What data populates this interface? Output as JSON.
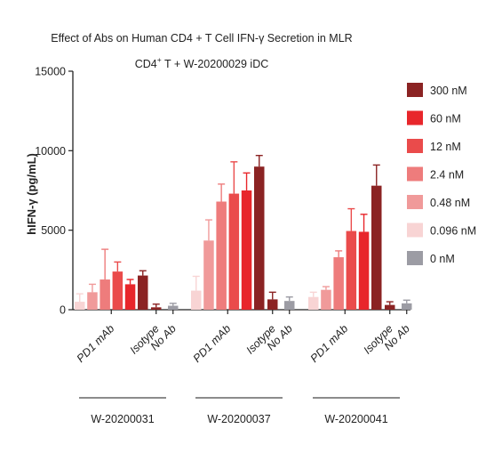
{
  "chart_data": {
    "type": "bar",
    "title": "Effect of Abs on Human CD4 + T Cell IFN-γ Secretion in MLR",
    "subtitle_prefix": "CD4",
    "subtitle_sup": "+",
    "subtitle_suffix": " T  +  W-20200029 iDC",
    "ylabel": "hIFN-γ (pg/mL)",
    "ylim": [
      0,
      15000
    ],
    "yticks": [
      "0",
      "5000",
      "10000",
      "15000"
    ],
    "legend_position": "right",
    "series": [
      {
        "name": "300 nM",
        "color": "#8b2323"
      },
      {
        "name": "60 nM",
        "color": "#e8262b"
      },
      {
        "name": "12 nM",
        "color": "#ea4b4b"
      },
      {
        "name": "2.4 nM",
        "color": "#ee7c7c"
      },
      {
        "name": "0.48 nM",
        "color": "#f09a9a"
      },
      {
        "name": "0.096 nM",
        "color": "#f8d4d4"
      },
      {
        "name": "0 nM",
        "color": "#9c9ca4"
      }
    ],
    "groups": [
      {
        "label": "W-20200031",
        "subgroups": [
          {
            "label": "PD1 mAb",
            "bars": [
              {
                "series": "0.096 nM",
                "value": 500,
                "error": 500
              },
              {
                "series": "0.48 nM",
                "value": 1100,
                "error": 500
              },
              {
                "series": "2.4 nM",
                "value": 1900,
                "error": 1900
              },
              {
                "series": "12 nM",
                "value": 2400,
                "error": 600
              },
              {
                "series": "60 nM",
                "value": 1600,
                "error": 300
              },
              {
                "series": "300 nM",
                "value": 2150,
                "error": 300
              }
            ]
          },
          {
            "label": "Isotype",
            "bars": [
              {
                "series": "300 nM",
                "value": 150,
                "error": 200
              }
            ]
          },
          {
            "label": "No Ab",
            "bars": [
              {
                "series": "0 nM",
                "value": 250,
                "error": 150
              }
            ]
          }
        ]
      },
      {
        "label": "W-20200037",
        "subgroups": [
          {
            "label": "PD1 mAb",
            "bars": [
              {
                "series": "0.096 nM",
                "value": 1200,
                "error": 900
              },
              {
                "series": "0.48 nM",
                "value": 4350,
                "error": 1300
              },
              {
                "series": "2.4 nM",
                "value": 6800,
                "error": 1100
              },
              {
                "series": "12 nM",
                "value": 7300,
                "error": 2000
              },
              {
                "series": "60 nM",
                "value": 7500,
                "error": 1100
              },
              {
                "series": "300 nM",
                "value": 9000,
                "error": 700
              }
            ]
          },
          {
            "label": "Isotype",
            "bars": [
              {
                "series": "300 nM",
                "value": 650,
                "error": 450
              }
            ]
          },
          {
            "label": "No Ab",
            "bars": [
              {
                "series": "0 nM",
                "value": 550,
                "error": 250
              }
            ]
          }
        ]
      },
      {
        "label": "W-20200041",
        "subgroups": [
          {
            "label": "PD1 mAb",
            "bars": [
              {
                "series": "0.096 nM",
                "value": 800,
                "error": 300
              },
              {
                "series": "0.48 nM",
                "value": 1250,
                "error": 200
              },
              {
                "series": "2.4 nM",
                "value": 3300,
                "error": 400
              },
              {
                "series": "12 nM",
                "value": 4950,
                "error": 1400
              },
              {
                "series": "60 nM",
                "value": 4900,
                "error": 1100
              },
              {
                "series": "300 nM",
                "value": 7800,
                "error": 1300
              }
            ]
          },
          {
            "label": "Isotype",
            "bars": [
              {
                "series": "300 nM",
                "value": 300,
                "error": 200
              }
            ]
          },
          {
            "label": "No Ab",
            "bars": [
              {
                "series": "0 nM",
                "value": 400,
                "error": 200
              }
            ]
          }
        ]
      }
    ]
  }
}
